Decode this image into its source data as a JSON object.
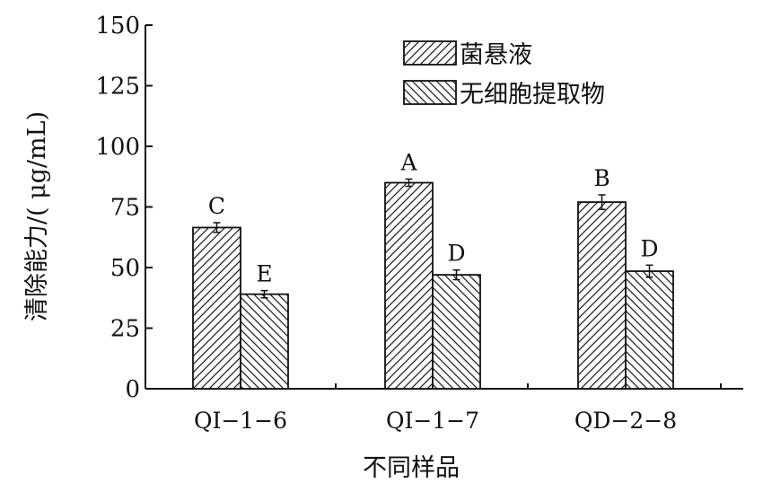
{
  "chart_data": {
    "type": "bar",
    "title": "",
    "xlabel": "不同样品",
    "ylabel": "清除能力/( μg/mL)",
    "ylim": [
      0,
      150
    ],
    "yticks": [
      0,
      25,
      50,
      75,
      100,
      125,
      150
    ],
    "categories": [
      "QI−1−6",
      "QI−1−7",
      "QD−2−8"
    ],
    "series": [
      {
        "name": "菌悬液",
        "values": [
          66.5,
          85,
          77
        ],
        "errors": [
          2,
          1.5,
          3
        ],
        "labels": [
          "C",
          "A",
          "B"
        ],
        "pattern": "hatch-forward"
      },
      {
        "name": "无细胞提取物",
        "values": [
          39,
          47,
          48.5
        ],
        "errors": [
          1.5,
          2,
          2.5
        ],
        "labels": [
          "E",
          "D",
          "D"
        ],
        "pattern": "hatch-backward"
      }
    ],
    "legend_position": "top-right",
    "grid": false
  }
}
